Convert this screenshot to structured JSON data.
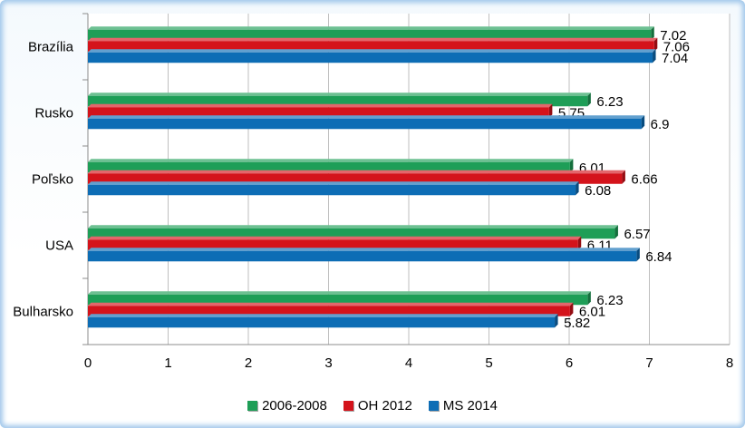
{
  "chart_data": {
    "type": "bar",
    "orientation": "horizontal",
    "categories": [
      "Brazília",
      "Rusko",
      "Poľsko",
      "USA",
      "Bulharsko"
    ],
    "series": [
      {
        "name": "2006-2008",
        "color": "#1e9e57",
        "values": [
          7.02,
          6.23,
          6.01,
          6.57,
          6.23
        ]
      },
      {
        "name": "OH 2012",
        "color": "#d4131b",
        "values": [
          7.06,
          5.75,
          6.66,
          6.11,
          6.01
        ]
      },
      {
        "name": "MS 2014",
        "color": "#0d6db5",
        "values": [
          7.04,
          6.9,
          6.08,
          6.84,
          5.82
        ]
      }
    ],
    "data_labels": [
      [
        "7.02",
        "6.23",
        "6.01",
        "6.57",
        "6.23"
      ],
      [
        "7.06",
        "5.75",
        "6.66",
        "6.11",
        "6.01"
      ],
      [
        "7.04",
        "6.9",
        "6.08",
        "6.84",
        "5.82"
      ]
    ],
    "xlim": [
      0,
      8
    ],
    "x_ticks": [
      "0",
      "1",
      "2",
      "3",
      "4",
      "5",
      "6",
      "7",
      "8"
    ],
    "grid": "vertical",
    "legend_position": "bottom",
    "title": "",
    "xlabel": "",
    "ylabel": ""
  }
}
